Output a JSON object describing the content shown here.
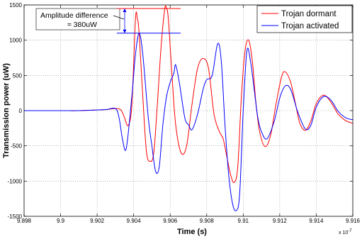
{
  "chart_data": {
    "type": "line",
    "title": "",
    "xlabel": "Time (s)",
    "ylabel": "Transmission power (uW)",
    "x_multiplier_label": "x 10",
    "x_multiplier_exponent": "-7",
    "xlim": [
      9.898,
      9.916
    ],
    "ylim": [
      -1500,
      1500
    ],
    "grid": true,
    "legend_position": "top-right",
    "x_ticks": [
      9.898,
      9.9,
      9.902,
      9.904,
      9.906,
      9.908,
      9.91,
      9.912,
      9.914,
      9.916
    ],
    "x_tick_labels": [
      "9.898",
      "9.9",
      "9.902",
      "9.904",
      "9.906",
      "9.908",
      "9.91",
      "9.912",
      "9.914",
      "9.916"
    ],
    "y_ticks": [
      -1500,
      -1000,
      -500,
      0,
      500,
      1000,
      1500
    ],
    "y_tick_labels": [
      "-1500",
      "-1000",
      "-500",
      "0",
      "500",
      "1000",
      "1500"
    ],
    "annotation": {
      "line1": "Amplitude difference",
      "line2": "≈ 380uW",
      "upper_level": 1450,
      "lower_level": 1100
    },
    "series": [
      {
        "name": "Trojan dormant",
        "color": "#ff0000",
        "points": [
          [
            9.898,
            0
          ],
          [
            9.9,
            0
          ],
          [
            9.901,
            0
          ],
          [
            9.902,
            10
          ],
          [
            9.9025,
            15
          ],
          [
            9.903,
            30
          ],
          [
            9.9033,
            10
          ],
          [
            9.9035,
            -100
          ],
          [
            9.9037,
            -210
          ],
          [
            9.9039,
            80
          ],
          [
            9.9041,
            1300
          ],
          [
            9.9042,
            1310
          ],
          [
            9.9043,
            1100
          ],
          [
            9.9045,
            200
          ],
          [
            9.9047,
            -580
          ],
          [
            9.9049,
            -720
          ],
          [
            9.9051,
            -600
          ],
          [
            9.9053,
            100
          ],
          [
            9.9055,
            900
          ],
          [
            9.9057,
            1440
          ],
          [
            9.9058,
            1450
          ],
          [
            9.9059,
            1300
          ],
          [
            9.9061,
            500
          ],
          [
            9.9063,
            -200
          ],
          [
            9.9066,
            -600
          ],
          [
            9.9069,
            -500
          ],
          [
            9.9072,
            100
          ],
          [
            9.9075,
            600
          ],
          [
            9.9078,
            740
          ],
          [
            9.9081,
            600
          ],
          [
            9.9084,
            -50
          ],
          [
            9.9087,
            -300
          ],
          [
            9.9089,
            -400
          ],
          [
            9.9091,
            -650
          ],
          [
            9.9093,
            -900
          ],
          [
            9.9095,
            -1020
          ],
          [
            9.9097,
            -800
          ],
          [
            9.9099,
            200
          ],
          [
            9.9101,
            850
          ],
          [
            9.9103,
            1000
          ],
          [
            9.9105,
            700
          ],
          [
            9.9107,
            100
          ],
          [
            9.9109,
            -300
          ],
          [
            9.9112,
            -510
          ],
          [
            9.9115,
            -350
          ],
          [
            9.9118,
            100
          ],
          [
            9.9121,
            480
          ],
          [
            9.9123,
            550
          ],
          [
            9.9126,
            400
          ],
          [
            9.9129,
            50
          ],
          [
            9.9131,
            -180
          ],
          [
            9.9134,
            -280
          ],
          [
            9.9137,
            -150
          ],
          [
            9.914,
            100
          ],
          [
            9.9144,
            220
          ],
          [
            9.9148,
            120
          ],
          [
            9.9152,
            -50
          ],
          [
            9.9156,
            -140
          ],
          [
            9.916,
            -180
          ]
        ]
      },
      {
        "name": "Trojan activated",
        "color": "#0000ff",
        "points": [
          [
            9.898,
            0
          ],
          [
            9.9,
            0
          ],
          [
            9.901,
            0
          ],
          [
            9.902,
            10
          ],
          [
            9.9025,
            15
          ],
          [
            9.903,
            30
          ],
          [
            9.9032,
            -100
          ],
          [
            9.9034,
            -420
          ],
          [
            9.9036,
            -530
          ],
          [
            9.9039,
            200
          ],
          [
            9.9041,
            800
          ],
          [
            9.9043,
            1100
          ],
          [
            9.9045,
            800
          ],
          [
            9.9048,
            -100
          ],
          [
            9.905,
            -500
          ],
          [
            9.9052,
            -860
          ],
          [
            9.9054,
            -800
          ],
          [
            9.9056,
            -200
          ],
          [
            9.9058,
            200
          ],
          [
            9.906,
            400
          ],
          [
            9.9062,
            530
          ],
          [
            9.9063,
            650
          ],
          [
            9.9065,
            400
          ],
          [
            9.9068,
            -100
          ],
          [
            9.907,
            -200
          ],
          [
            9.9072,
            -270
          ],
          [
            9.9075,
            -50
          ],
          [
            9.9078,
            300
          ],
          [
            9.908,
            440
          ],
          [
            9.9083,
            500
          ],
          [
            9.9086,
            950
          ],
          [
            9.9088,
            700
          ],
          [
            9.909,
            -200
          ],
          [
            9.9092,
            -900
          ],
          [
            9.9094,
            -1300
          ],
          [
            9.9096,
            -1420
          ],
          [
            9.9098,
            -1200
          ],
          [
            9.91,
            0
          ],
          [
            9.9102,
            850
          ],
          [
            9.9104,
            700
          ],
          [
            9.9106,
            300
          ],
          [
            9.9108,
            -100
          ],
          [
            9.911,
            -300
          ],
          [
            9.9113,
            -400
          ],
          [
            9.9117,
            -150
          ],
          [
            9.912,
            180
          ],
          [
            9.9123,
            350
          ],
          [
            9.9126,
            300
          ],
          [
            9.913,
            -30
          ],
          [
            9.9134,
            -260
          ],
          [
            9.9137,
            -210
          ],
          [
            9.914,
            50
          ],
          [
            9.9144,
            200
          ],
          [
            9.9148,
            150
          ],
          [
            9.9152,
            -10
          ],
          [
            9.9156,
            -100
          ],
          [
            9.916,
            -130
          ]
        ]
      }
    ]
  }
}
